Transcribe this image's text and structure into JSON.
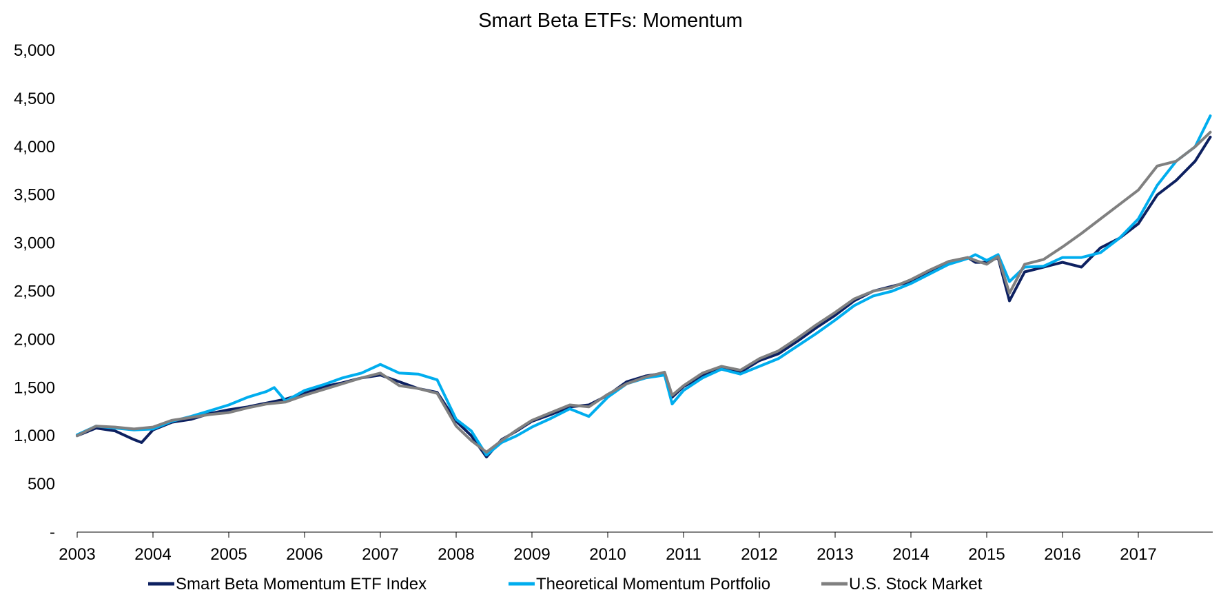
{
  "chart_data": {
    "type": "line",
    "title": "Smart Beta ETFs: Momentum",
    "xlabel": "",
    "ylabel": "",
    "x_tick_labels": [
      "2003",
      "2004",
      "2005",
      "2006",
      "2007",
      "2008",
      "2009",
      "2010",
      "2011",
      "2012",
      "2013",
      "2014",
      "2015",
      "2016",
      "2017"
    ],
    "y_tick_labels": [
      "-",
      "500",
      "1,000",
      "1,500",
      "2,000",
      "2,500",
      "3,000",
      "3,500",
      "4,000",
      "4,500",
      "5,000"
    ],
    "y_ticks": [
      0,
      500,
      1000,
      1500,
      2000,
      2500,
      3000,
      3500,
      4000,
      4500,
      5000
    ],
    "ylim": [
      0,
      5000
    ],
    "xlim": [
      2003.0,
      2017.95
    ],
    "grid": false,
    "legend_position": "bottom",
    "series": [
      {
        "name": "Smart Beta Momentum ETF Index",
        "color": "#0d2060",
        "x": [
          2003.0,
          2003.25,
          2003.5,
          2003.75,
          2003.85,
          2004.0,
          2004.25,
          2004.5,
          2004.75,
          2005.0,
          2005.25,
          2005.5,
          2005.75,
          2006.0,
          2006.25,
          2006.5,
          2006.75,
          2007.0,
          2007.25,
          2007.5,
          2007.75,
          2008.0,
          2008.2,
          2008.4,
          2008.6,
          2008.8,
          2009.0,
          2009.25,
          2009.5,
          2009.75,
          2010.0,
          2010.25,
          2010.5,
          2010.75,
          2010.85,
          2011.0,
          2011.25,
          2011.5,
          2011.75,
          2012.0,
          2012.25,
          2012.5,
          2012.75,
          2013.0,
          2013.25,
          2013.5,
          2013.75,
          2014.0,
          2014.25,
          2014.5,
          2014.75,
          2014.85,
          2015.0,
          2015.15,
          2015.3,
          2015.5,
          2015.75,
          2016.0,
          2016.25,
          2016.5,
          2016.75,
          2017.0,
          2017.25,
          2017.5,
          2017.75,
          2017.95
        ],
        "y": [
          1000,
          1080,
          1050,
          960,
          930,
          1060,
          1140,
          1170,
          1230,
          1270,
          1300,
          1340,
          1380,
          1440,
          1510,
          1550,
          1600,
          1630,
          1560,
          1490,
          1450,
          1150,
          1000,
          780,
          960,
          1050,
          1150,
          1220,
          1300,
          1320,
          1420,
          1560,
          1620,
          1650,
          1400,
          1510,
          1620,
          1700,
          1660,
          1780,
          1850,
          1980,
          2120,
          2250,
          2400,
          2500,
          2550,
          2600,
          2700,
          2800,
          2850,
          2800,
          2800,
          2850,
          2400,
          2700,
          2750,
          2800,
          2750,
          2950,
          3050,
          3200,
          3500,
          3650,
          3850,
          4100
        ]
      },
      {
        "name": "Theoretical Momentum Portfolio",
        "color": "#00adee",
        "x": [
          2003.0,
          2003.25,
          2003.5,
          2003.75,
          2004.0,
          2004.25,
          2004.5,
          2004.75,
          2005.0,
          2005.25,
          2005.5,
          2005.6,
          2005.75,
          2006.0,
          2006.25,
          2006.5,
          2006.75,
          2007.0,
          2007.25,
          2007.5,
          2007.75,
          2008.0,
          2008.2,
          2008.4,
          2008.6,
          2008.8,
          2009.0,
          2009.25,
          2009.5,
          2009.75,
          2010.0,
          2010.25,
          2010.5,
          2010.75,
          2010.85,
          2011.0,
          2011.25,
          2011.5,
          2011.75,
          2012.0,
          2012.25,
          2012.5,
          2012.75,
          2013.0,
          2013.25,
          2013.5,
          2013.75,
          2014.0,
          2014.25,
          2014.5,
          2014.75,
          2014.85,
          2015.0,
          2015.15,
          2015.3,
          2015.5,
          2015.75,
          2016.0,
          2016.25,
          2016.5,
          2016.75,
          2017.0,
          2017.25,
          2017.5,
          2017.75,
          2017.95
        ],
        "y": [
          1010,
          1100,
          1080,
          1060,
          1070,
          1150,
          1200,
          1260,
          1320,
          1400,
          1460,
          1500,
          1360,
          1470,
          1530,
          1600,
          1650,
          1740,
          1650,
          1640,
          1580,
          1170,
          1050,
          800,
          930,
          1000,
          1090,
          1180,
          1280,
          1200,
          1400,
          1540,
          1600,
          1630,
          1330,
          1470,
          1600,
          1690,
          1640,
          1720,
          1800,
          1930,
          2060,
          2200,
          2350,
          2450,
          2500,
          2580,
          2680,
          2780,
          2840,
          2880,
          2820,
          2880,
          2600,
          2750,
          2760,
          2850,
          2850,
          2900,
          3050,
          3250,
          3600,
          3850,
          4000,
          4320
        ]
      },
      {
        "name": "U.S. Stock Market",
        "color": "#808080",
        "x": [
          2003.0,
          2003.25,
          2003.5,
          2003.75,
          2004.0,
          2004.25,
          2004.5,
          2004.75,
          2005.0,
          2005.25,
          2005.5,
          2005.75,
          2006.0,
          2006.25,
          2006.5,
          2006.75,
          2007.0,
          2007.25,
          2007.5,
          2007.75,
          2008.0,
          2008.2,
          2008.4,
          2008.6,
          2008.8,
          2009.0,
          2009.25,
          2009.5,
          2009.75,
          2010.0,
          2010.25,
          2010.5,
          2010.75,
          2010.85,
          2011.0,
          2011.25,
          2011.5,
          2011.75,
          2012.0,
          2012.25,
          2012.5,
          2012.75,
          2013.0,
          2013.25,
          2013.5,
          2013.75,
          2014.0,
          2014.25,
          2014.5,
          2014.75,
          2014.85,
          2015.0,
          2015.15,
          2015.3,
          2015.5,
          2015.75,
          2016.0,
          2016.25,
          2016.5,
          2016.75,
          2017.0,
          2017.25,
          2017.5,
          2017.75,
          2017.95
        ],
        "y": [
          1000,
          1100,
          1090,
          1070,
          1090,
          1160,
          1190,
          1220,
          1240,
          1290,
          1330,
          1350,
          1420,
          1480,
          1540,
          1600,
          1650,
          1520,
          1490,
          1440,
          1100,
          950,
          830,
          950,
          1060,
          1160,
          1240,
          1320,
          1300,
          1430,
          1540,
          1610,
          1660,
          1420,
          1520,
          1650,
          1720,
          1680,
          1800,
          1880,
          2010,
          2150,
          2280,
          2420,
          2500,
          2540,
          2620,
          2720,
          2810,
          2850,
          2820,
          2780,
          2860,
          2480,
          2780,
          2830,
          2960,
          3100,
          3250,
          3400,
          3550,
          3800,
          3850,
          4000,
          4150
        ]
      }
    ]
  }
}
